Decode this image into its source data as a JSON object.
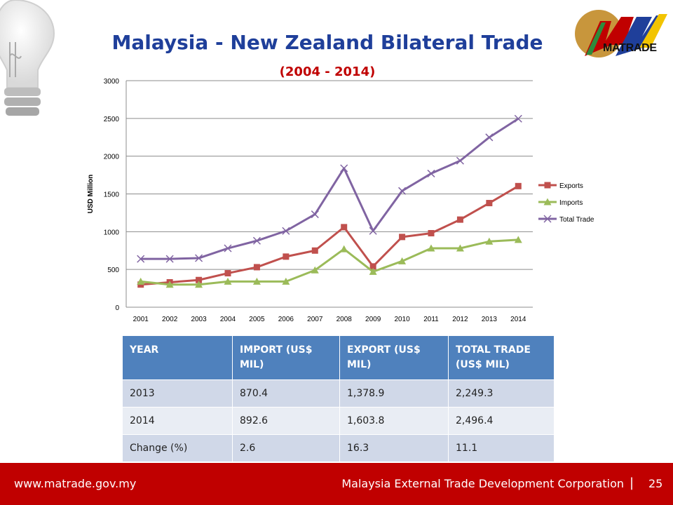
{
  "slide": {
    "title": "Malaysia - New Zealand Bilateral Trade",
    "subtitle": "(2004 - 2014)",
    "logo_text": "MATRADE"
  },
  "chart_data": {
    "type": "line",
    "ylabel": "USD Million",
    "ylim": [
      0,
      3000
    ],
    "yticks": [
      "0",
      "500",
      "1000",
      "1500",
      "2000",
      "2500",
      "3000"
    ],
    "ytick_values": [
      0,
      500,
      1000,
      1500,
      2000,
      2500,
      3000
    ],
    "categories": [
      "2001",
      "2002",
      "2003",
      "2004",
      "2005",
      "2006",
      "2007",
      "2008",
      "2009",
      "2010",
      "2011",
      "2012",
      "2013",
      "2014"
    ],
    "grid": true,
    "legend_position": "right",
    "series": [
      {
        "name": "Exports",
        "color": "#c0504d",
        "marker": "square",
        "values": [
          300,
          330,
          360,
          450,
          530,
          670,
          750,
          1060,
          540,
          930,
          980,
          1160,
          1378.9,
          1603.8
        ]
      },
      {
        "name": "Imports",
        "color": "#9bbb59",
        "marker": "triangle",
        "values": [
          340,
          300,
          300,
          340,
          340,
          340,
          490,
          770,
          470,
          610,
          780,
          780,
          870.4,
          892.6
        ]
      },
      {
        "name": "Total Trade",
        "color": "#8064a2",
        "marker": "x",
        "values": [
          640,
          640,
          650,
          780,
          880,
          1010,
          1230,
          1840,
          1010,
          1540,
          1770,
          1940,
          2249.3,
          2496.4
        ]
      }
    ]
  },
  "table": {
    "headers": [
      "YEAR",
      "IMPORT (US$ MIL)",
      "EXPORT (US$ MIL)",
      "TOTAL TRADE (US$ MIL)"
    ],
    "rows": [
      [
        "2013",
        "870.4",
        "1,378.9",
        "2,249.3"
      ],
      [
        "2014",
        "892.6",
        "1,603.8",
        "2,496.4"
      ],
      [
        "Change (%)",
        "2.6",
        "16.3",
        "11.1"
      ]
    ]
  },
  "footer": {
    "url": "www.matrade.gov.my",
    "org": "Malaysia External Trade Development Corporation",
    "separator": "|",
    "page": "25"
  },
  "colors": {
    "title": "#1f3f9a",
    "subtitle": "#c00000",
    "footer_bg": "#c00000",
    "table_header": "#4f81bd",
    "table_row_odd": "#d0d8e8",
    "table_row_even": "#e9edf4"
  }
}
